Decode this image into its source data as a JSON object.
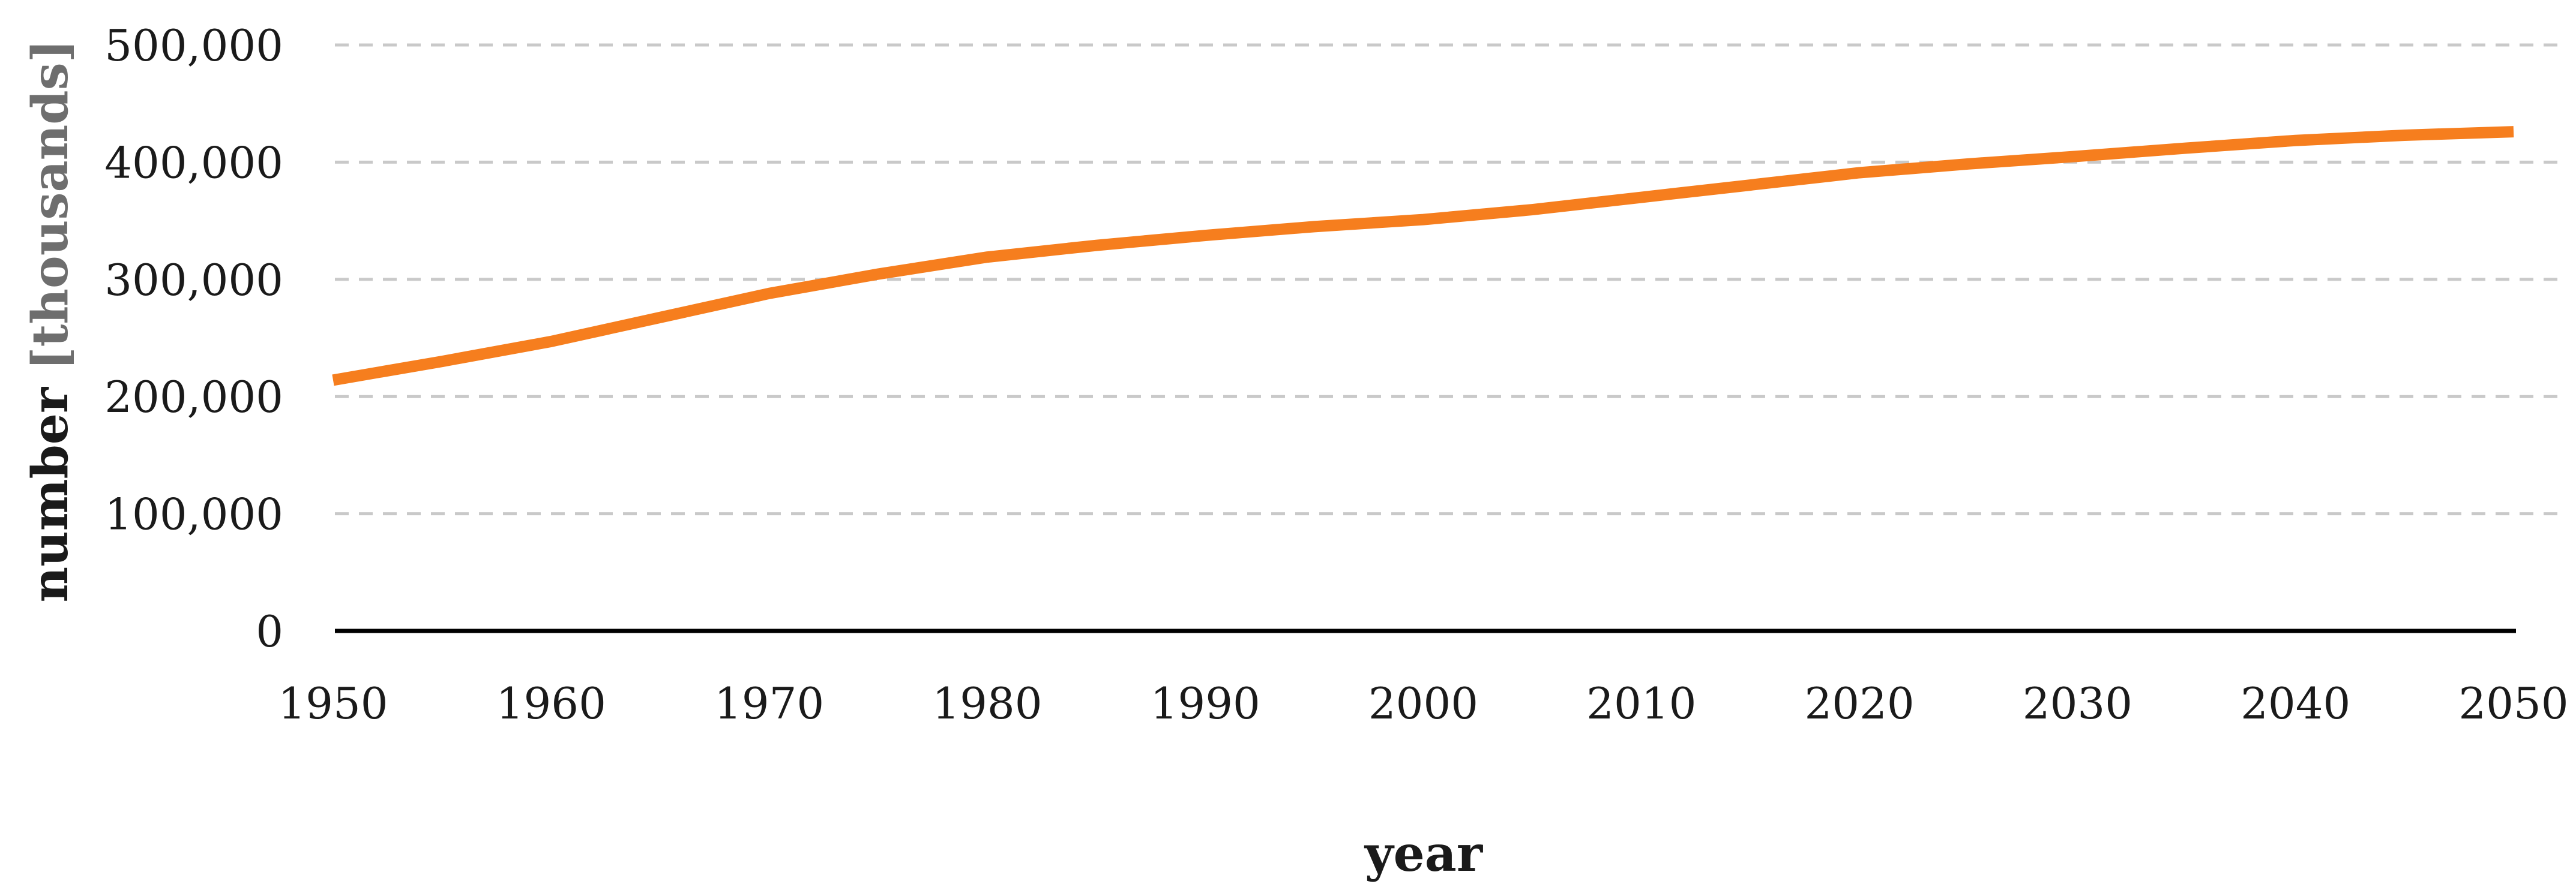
{
  "page": {
    "background_color": "#ffffff"
  },
  "chart_data": {
    "type": "line",
    "title": "",
    "xlabel": "year",
    "ylabel": "number [thousands]",
    "ylabel_main": "number",
    "ylabel_unit": " [thousands]",
    "xlim": [
      1950,
      2050
    ],
    "ylim": [
      0,
      500000
    ],
    "grid": "horizontal dashed",
    "legend_position": "none",
    "x_ticks": [
      "1950",
      "1960",
      "1970",
      "1980",
      "1990",
      "2000",
      "2010",
      "2020",
      "2030",
      "2040",
      "2050"
    ],
    "y_ticks": [
      {
        "value": 0,
        "label": "0"
      },
      {
        "value": 100000,
        "label": "100,000"
      },
      {
        "value": 200000,
        "label": "200,000"
      },
      {
        "value": 300000,
        "label": "300,000"
      },
      {
        "value": 400000,
        "label": "400,000"
      },
      {
        "value": 500000,
        "label": "500,000"
      }
    ],
    "series": [
      {
        "name": "number [thousands]",
        "color": "#F67E1E",
        "points": [
          {
            "year": 1950,
            "value": 214000
          },
          {
            "year": 1955,
            "value": 230000
          },
          {
            "year": 1960,
            "value": 247000
          },
          {
            "year": 1965,
            "value": 267500
          },
          {
            "year": 1970,
            "value": 288000
          },
          {
            "year": 1975,
            "value": 304500
          },
          {
            "year": 1980,
            "value": 319000
          },
          {
            "year": 1985,
            "value": 329000
          },
          {
            "year": 1990,
            "value": 337500
          },
          {
            "year": 1995,
            "value": 345000
          },
          {
            "year": 2000,
            "value": 351000
          },
          {
            "year": 2005,
            "value": 359500
          },
          {
            "year": 2010,
            "value": 370000
          },
          {
            "year": 2015,
            "value": 380500
          },
          {
            "year": 2020,
            "value": 391000
          },
          {
            "year": 2025,
            "value": 398500
          },
          {
            "year": 2030,
            "value": 405000
          },
          {
            "year": 2035,
            "value": 412000
          },
          {
            "year": 2040,
            "value": 418500
          },
          {
            "year": 2045,
            "value": 423000
          },
          {
            "year": 2050,
            "value": 426000
          }
        ]
      }
    ],
    "colors": {
      "line": "#F67E1E",
      "gridline": "#C9C9C9",
      "axis": "#000000",
      "tick_text": "#1a1a1a",
      "ylabel_main": "#1a1a1a",
      "ylabel_unit": "#6e6e6e"
    }
  }
}
